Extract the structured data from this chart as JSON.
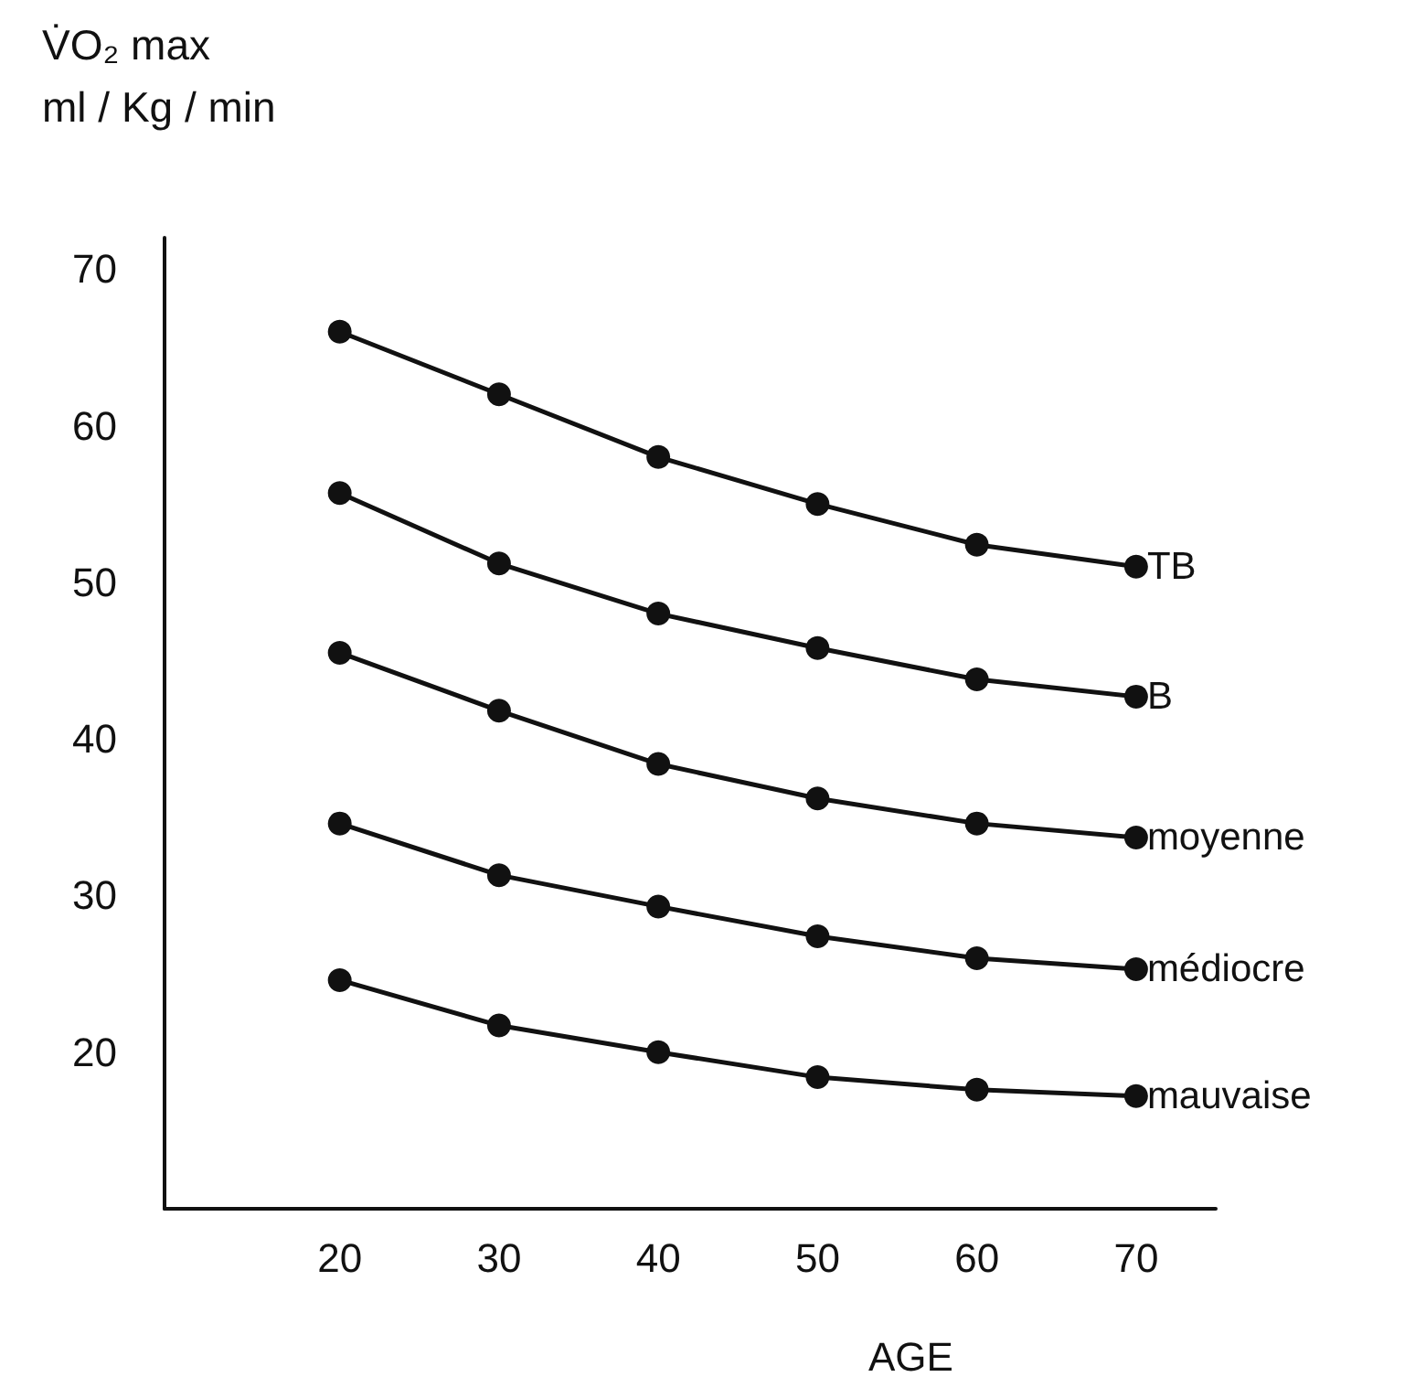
{
  "chart_data": {
    "type": "line",
    "title": "V̇O₂ max",
    "ylabel": "ml / Kg / min",
    "xlabel": "AGE",
    "x": [
      20,
      30,
      40,
      50,
      60,
      70
    ],
    "series": [
      {
        "name": "TB",
        "color": "#111111",
        "values": [
          66,
          62,
          58,
          55,
          52.4,
          51
        ]
      },
      {
        "name": "B",
        "color": "#111111",
        "values": [
          55.7,
          51.2,
          48,
          45.8,
          43.8,
          42.7
        ]
      },
      {
        "name": "moyenne",
        "color": "#111111",
        "values": [
          45.5,
          41.8,
          38.4,
          36.2,
          34.6,
          33.7
        ]
      },
      {
        "name": "médiocre",
        "color": "#111111",
        "values": [
          34.6,
          31.3,
          29.3,
          27.4,
          26,
          25.3
        ]
      },
      {
        "name": "mauvaise",
        "color": "#111111",
        "values": [
          24.6,
          21.7,
          20,
          18.4,
          17.6,
          17.2
        ]
      }
    ],
    "xlim": [
      9,
      75
    ],
    "xticks": [
      20,
      30,
      40,
      50,
      60,
      70
    ],
    "ylim": [
      10,
      72
    ],
    "yticks": [
      20,
      30,
      40,
      50,
      60,
      70
    ],
    "grid": false,
    "legend": false,
    "marker": "circle",
    "line_style": "solid"
  }
}
